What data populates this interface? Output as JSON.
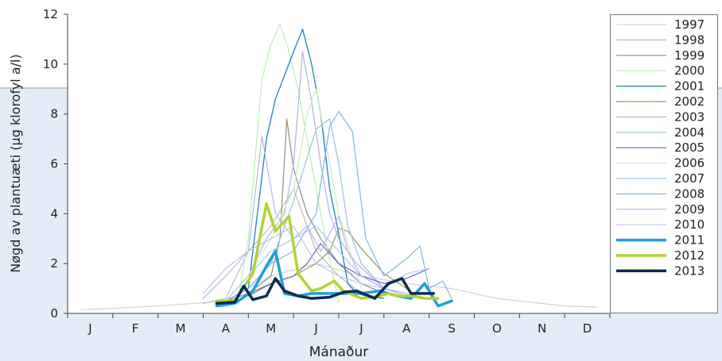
{
  "chart_data": {
    "type": "line",
    "xlabel": "Mánaður",
    "ylabel": "Nøgd av plantuæti (µg klorofyl a/l)",
    "ylim": [
      0,
      12
    ],
    "xlim": [
      0,
      12
    ],
    "y_ticks": [
      0,
      2,
      4,
      6,
      8,
      10,
      12
    ],
    "x_tick_labels": [
      "J",
      "F",
      "M",
      "A",
      "M",
      "J",
      "J",
      "A",
      "S",
      "O",
      "N",
      "D"
    ],
    "legend_position": "right",
    "grid": false,
    "series": [
      {
        "name": "1997",
        "color": "#d3d3d3",
        "width": 1.2,
        "x": [
          0.3,
          1.0,
          2.0,
          2.8,
          3.5,
          4.5,
          5.5,
          6.5,
          7.5,
          8.5,
          9.0,
          9.5,
          10.0,
          11.0,
          11.7
        ],
        "y": [
          0.15,
          0.2,
          0.3,
          0.4,
          0.5,
          1.5,
          2.0,
          1.5,
          1.2,
          1.0,
          0.8,
          0.6,
          0.5,
          0.3,
          0.25
        ]
      },
      {
        "name": "1998",
        "color": "#bdbdbd",
        "width": 1.2,
        "x": [
          3.0,
          3.5,
          4.0,
          4.5,
          5.0,
          5.5,
          6.0,
          6.5,
          7.0
        ],
        "y": [
          0.4,
          0.6,
          2.5,
          3.5,
          5.0,
          2.5,
          1.5,
          0.8,
          0.6
        ]
      },
      {
        "name": "1999",
        "color": "#8c8c8c",
        "width": 1.2,
        "x": [
          3.5,
          4.0,
          4.5,
          4.7,
          4.85,
          5.0,
          5.3,
          5.6,
          6.0,
          6.5,
          7.0
        ],
        "y": [
          0.5,
          0.8,
          1.5,
          3.0,
          7.8,
          5.8,
          4.0,
          3.0,
          2.0,
          1.2,
          0.8
        ]
      },
      {
        "name": "2000",
        "color": "#b8f0b0",
        "width": 1.2,
        "x": [
          3.8,
          4.0,
          4.3,
          4.5,
          4.7,
          4.9,
          5.1,
          5.3,
          5.5,
          5.7,
          6.0
        ],
        "y": [
          0.8,
          3.0,
          9.4,
          10.8,
          11.6,
          10.5,
          9.0,
          7.0,
          5.0,
          3.0,
          0.4
        ]
      },
      {
        "name": "2001",
        "color": "#1e7fc7",
        "width": 1.3,
        "x": [
          3.5,
          4.0,
          4.2,
          4.4,
          4.6,
          5.0,
          5.2,
          5.4,
          5.6,
          5.8,
          6.0,
          6.2,
          6.4,
          6.6,
          7.0
        ],
        "y": [
          0.5,
          1.0,
          4.0,
          7.0,
          8.6,
          10.5,
          11.4,
          10.0,
          8.0,
          5.0,
          3.2,
          1.2,
          0.8,
          0.7,
          0.6
        ]
      },
      {
        "name": "2002",
        "color": "#9c9a5a",
        "width": 1.2,
        "x": [
          4.0,
          4.5,
          5.0,
          5.5,
          5.8,
          6.0,
          6.2,
          6.5,
          7.0,
          7.5
        ],
        "y": [
          0.8,
          1.2,
          1.5,
          2.0,
          2.5,
          3.4,
          3.3,
          2.6,
          1.6,
          1.0
        ]
      },
      {
        "name": "2003",
        "color": "#b0b0e8",
        "width": 1.2,
        "x": [
          4.0,
          4.4,
          4.8,
          5.0,
          5.2,
          5.4,
          5.6,
          5.8,
          6.0,
          6.4,
          7.0
        ],
        "y": [
          1.5,
          3.0,
          4.0,
          6.0,
          10.5,
          8.5,
          6.0,
          4.0,
          3.0,
          2.0,
          1.0
        ]
      },
      {
        "name": "2004",
        "color": "#90c4e0",
        "width": 1.2,
        "x": [
          3.5,
          4.0,
          4.5,
          5.0,
          5.5,
          5.8,
          6.0,
          6.2,
          6.5,
          7.0,
          7.5
        ],
        "y": [
          0.5,
          1.0,
          2.0,
          4.5,
          7.4,
          7.8,
          6.0,
          3.5,
          2.0,
          1.0,
          0.7
        ]
      },
      {
        "name": "2005",
        "color": "#6a64c8",
        "width": 1.2,
        "x": [
          4.0,
          4.5,
          5.0,
          5.3,
          5.6,
          6.0,
          6.5,
          7.0,
          7.5,
          8.0
        ],
        "y": [
          0.7,
          1.2,
          1.5,
          2.0,
          2.8,
          2.0,
          1.5,
          1.2,
          1.4,
          1.8
        ]
      },
      {
        "name": "2006",
        "color": "#c8f0c0",
        "width": 1.2,
        "x": [
          3.5,
          4.0,
          4.5,
          5.0,
          5.3,
          5.5,
          5.8,
          6.0,
          6.5
        ],
        "y": [
          0.5,
          1.5,
          3.0,
          5.0,
          8.0,
          9.0,
          6.0,
          4.0,
          1.0
        ]
      },
      {
        "name": "2007",
        "color": "#a4cce8",
        "width": 1.2,
        "x": [
          3.5,
          4.0,
          4.5,
          5.0,
          5.5,
          6.0,
          6.5,
          7.0,
          7.5,
          8.0
        ],
        "y": [
          0.5,
          1.5,
          2.5,
          3.0,
          3.5,
          2.5,
          1.5,
          1.0,
          0.8,
          0.6
        ]
      },
      {
        "name": "2008",
        "color": "#80b8e0",
        "width": 1.2,
        "x": [
          3.5,
          4.0,
          4.5,
          5.0,
          5.5,
          5.8,
          6.0,
          6.3,
          6.6,
          7.0,
          7.5,
          7.8,
          8.0,
          8.3,
          8.5
        ],
        "y": [
          0.5,
          1.0,
          2.0,
          2.5,
          4.0,
          7.5,
          8.1,
          7.3,
          3.0,
          1.5,
          2.2,
          2.7,
          1.0,
          1.3,
          0.6
        ]
      },
      {
        "name": "2009",
        "color": "#b8b4ec",
        "width": 1.2,
        "x": [
          3.0,
          3.5,
          4.0,
          4.3,
          4.6,
          5.0,
          5.3,
          5.6,
          6.0,
          6.2,
          6.5,
          7.0,
          7.5
        ],
        "y": [
          0.6,
          1.5,
          2.5,
          7.1,
          4.0,
          3.0,
          3.5,
          2.5,
          3.9,
          2.5,
          1.5,
          1.0,
          0.8
        ]
      },
      {
        "name": "2010",
        "color": "#c4c0f0",
        "width": 1.2,
        "x": [
          3.0,
          3.5,
          4.0,
          4.5,
          5.0,
          5.5,
          6.0,
          6.5,
          7.0,
          7.5,
          8.0
        ],
        "y": [
          0.8,
          1.8,
          2.5,
          3.0,
          3.5,
          2.0,
          1.5,
          1.2,
          1.0,
          1.6,
          1.8
        ]
      },
      {
        "name": "2011",
        "color": "#1aa0d8",
        "width": 3.5,
        "x": [
          3.3,
          3.7,
          4.1,
          4.4,
          4.6,
          4.8,
          5.1,
          5.4,
          5.6,
          5.9,
          6.1,
          6.5,
          6.9,
          7.1,
          7.3,
          7.6,
          7.9,
          8.2,
          8.5
        ],
        "y": [
          0.3,
          0.4,
          0.9,
          1.9,
          2.5,
          0.8,
          0.7,
          0.8,
          0.8,
          0.8,
          0.8,
          0.8,
          0.9,
          0.8,
          0.7,
          0.6,
          1.2,
          0.3,
          0.5
        ]
      },
      {
        "name": "2012",
        "color": "#b4d234",
        "width": 3.5,
        "x": [
          3.3,
          3.7,
          4.1,
          4.4,
          4.6,
          4.9,
          5.1,
          5.4,
          5.6,
          5.9,
          6.1,
          6.5,
          6.9,
          7.1,
          7.3,
          7.6,
          7.9,
          8.2
        ],
        "y": [
          0.5,
          0.5,
          1.6,
          4.4,
          3.3,
          3.9,
          1.6,
          0.9,
          1.0,
          1.3,
          0.9,
          0.6,
          0.7,
          0.8,
          0.7,
          0.7,
          0.6,
          0.6
        ]
      },
      {
        "name": "2013",
        "color": "#0a2c52",
        "width": 3.5,
        "x": [
          3.3,
          3.7,
          3.9,
          4.1,
          4.4,
          4.6,
          4.8,
          5.1,
          5.4,
          5.8,
          6.1,
          6.4,
          6.8,
          7.1,
          7.4,
          7.6,
          7.9,
          8.1
        ],
        "y": [
          0.4,
          0.45,
          1.1,
          0.55,
          0.7,
          1.4,
          0.9,
          0.7,
          0.6,
          0.65,
          0.85,
          0.9,
          0.6,
          1.2,
          1.4,
          0.8,
          0.8,
          0.8
        ]
      }
    ]
  }
}
